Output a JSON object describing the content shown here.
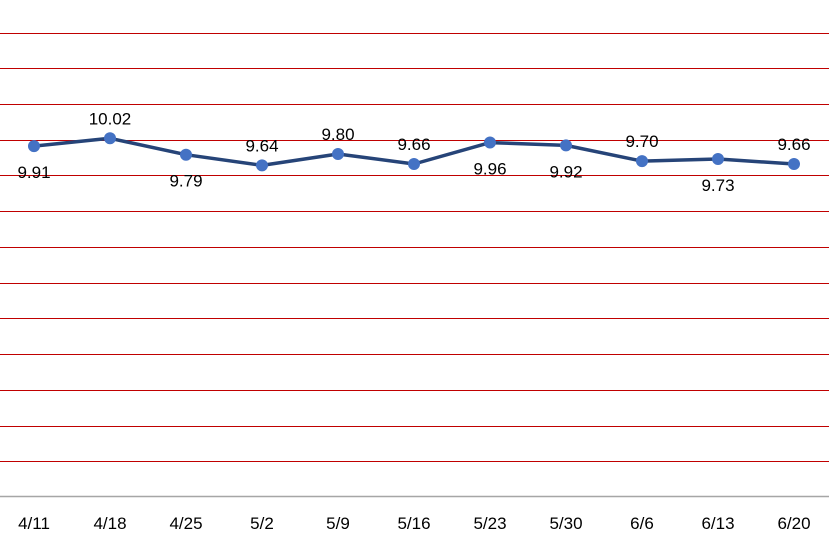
{
  "chart_data": {
    "type": "line",
    "categories": [
      "4/11",
      "4/18",
      "4/25",
      "5/2",
      "5/9",
      "5/16",
      "5/23",
      "5/30",
      "6/6",
      "6/13",
      "6/20"
    ],
    "series": [
      {
        "values": [
          9.91,
          10.02,
          9.79,
          9.64,
          9.8,
          9.66,
          9.96,
          9.92,
          9.7,
          9.73,
          9.66
        ],
        "data_labels": [
          "9.91",
          "10.02",
          "9.79",
          "9.64",
          "9.80",
          "9.66",
          "9.96",
          "9.92",
          "9.70",
          "9.73",
          "9.66"
        ]
      }
    ],
    "title": "",
    "xlabel": "",
    "ylabel": "",
    "ylim": [
      5.0,
      11.5
    ],
    "y_gridline_step": 0.5,
    "grid": true,
    "legend": "none",
    "line_color": "#264478",
    "marker_color": "#4472C4",
    "gridline_color": "#C00000",
    "axis_color": "#A6A6A6",
    "label_positions": [
      "below",
      "above",
      "below",
      "above",
      "above",
      "above",
      "below",
      "below",
      "above",
      "below",
      "above"
    ]
  }
}
